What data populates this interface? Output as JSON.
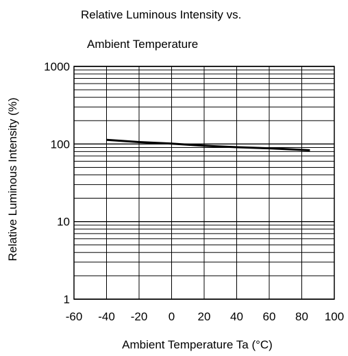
{
  "chart_data": {
    "type": "line",
    "title_line1": "Relative Luminous Intensity vs.",
    "title_line2": "Ambient Temperature",
    "xlabel": "Ambient Temperature Ta (°C)",
    "ylabel": "Relative Luminous Intensity (%)",
    "x_scale": "linear",
    "y_scale": "log",
    "xlim": [
      -60,
      100
    ],
    "ylim": [
      1,
      1000
    ],
    "x_ticks": [
      -60,
      -40,
      -20,
      0,
      20,
      40,
      60,
      80,
      100
    ],
    "y_ticks": [
      1,
      10,
      100,
      1000
    ],
    "grid": true,
    "series": [
      {
        "x": [
          -40,
          -20,
          0,
          20,
          40,
          60,
          80,
          85
        ],
        "y": [
          113,
          106,
          101,
          95,
          91,
          88,
          84,
          83
        ]
      }
    ],
    "line_color": "#000000"
  }
}
